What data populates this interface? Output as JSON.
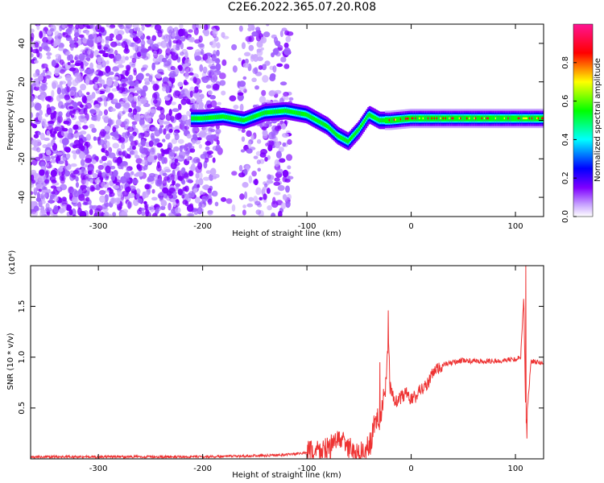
{
  "title": "C2E6.2022.365.07.20.R08",
  "chart_data": [
    {
      "type": "heatmap",
      "title": "C2E6.2022.365.07.20.R08",
      "xlabel": "Height of straight line (km)",
      "ylabel": "Frequency (Hz)",
      "xlim": [
        -365,
        127
      ],
      "ylim": [
        -50,
        50
      ],
      "x_ticks": [
        -300,
        -200,
        -100,
        0,
        100
      ],
      "y_ticks": [
        -40,
        -20,
        0,
        20,
        40
      ],
      "grid": false,
      "colorbar": {
        "label": "Normalized spectral amplitude",
        "range": [
          0.0,
          1.0
        ],
        "ticks": [
          0.0,
          0.2,
          0.4,
          0.6,
          0.8
        ],
        "colormap": [
          "#ffffff",
          "#c9a6ff",
          "#7f00ff",
          "#0000ff",
          "#00ffff",
          "#00ff00",
          "#ffff00",
          "#ff0000",
          "#ff1493"
        ]
      },
      "ridge": {
        "x": [
          -200,
          -180,
          -160,
          -140,
          -120,
          -100,
          -90,
          -80,
          -70,
          -60,
          -50,
          -40,
          -30,
          -20,
          0,
          50,
          100,
          127
        ],
        "y": [
          1,
          2,
          0,
          4,
          5,
          3,
          0,
          -3,
          -8,
          -11,
          -5,
          3,
          0,
          0,
          1,
          1,
          1,
          1
        ]
      }
    },
    {
      "type": "line",
      "xlabel": "Height of straight line (km)",
      "ylabel": "SNR (10 * v/v)",
      "y_multiplier": "(x10⁴)",
      "xlim": [
        -365,
        127
      ],
      "ylim": [
        0,
        1.9
      ],
      "x_ticks": [
        -300,
        -200,
        -100,
        0,
        100
      ],
      "y_ticks": [
        0.5,
        1.0,
        1.5
      ],
      "y_tick_labels": [
        "0.5",
        "1.0",
        "1.5"
      ],
      "color": "#ee3333",
      "x": [
        -365,
        -300,
        -250,
        -200,
        -150,
        -120,
        -100,
        -90,
        -80,
        -75,
        -70,
        -65,
        -60,
        -55,
        -50,
        -45,
        -40,
        -35,
        -30,
        -25,
        -22,
        -20,
        -15,
        -10,
        -5,
        0,
        5,
        10,
        15,
        20,
        25,
        30,
        40,
        50,
        60,
        80,
        100,
        105,
        108,
        110,
        115,
        127
      ],
      "y": [
        0.02,
        0.02,
        0.02,
        0.02,
        0.03,
        0.04,
        0.06,
        0.08,
        0.1,
        0.14,
        0.2,
        0.18,
        0.1,
        0.06,
        0.06,
        0.08,
        0.12,
        0.35,
        0.4,
        0.65,
        1.1,
        0.7,
        0.55,
        0.6,
        0.65,
        0.58,
        0.62,
        0.7,
        0.72,
        0.82,
        0.88,
        0.92,
        0.95,
        0.97,
        0.96,
        0.96,
        0.98,
        1.0,
        1.6,
        0.3,
        0.96,
        0.95
      ],
      "spikes": [
        {
          "x": -22,
          "y": 1.46
        },
        {
          "x": -30,
          "y": 0.95
        },
        {
          "x": 110,
          "y": 1.9
        },
        {
          "x": 111,
          "y": 0.2
        }
      ]
    }
  ]
}
